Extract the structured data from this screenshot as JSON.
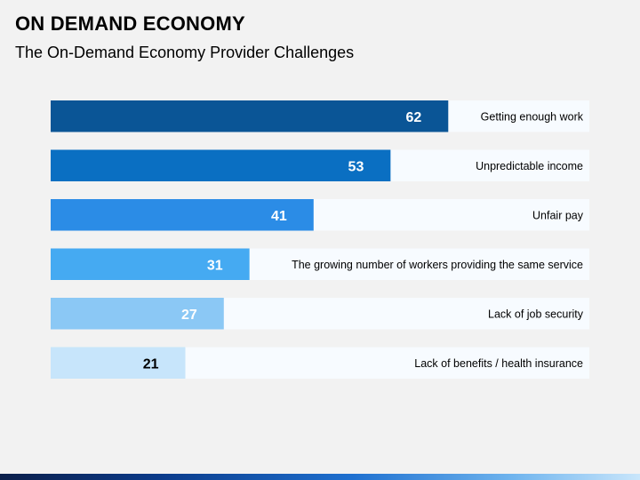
{
  "header": {
    "title": "ON DEMAND ECONOMY",
    "subtitle": "The On-Demand Economy Provider Challenges"
  },
  "chart_data": {
    "type": "bar",
    "orientation": "horizontal",
    "categories": [
      "Getting enough work",
      "Unpredictable income",
      "Unfair pay",
      "The growing number of workers providing the same service",
      "Lack of job security",
      "Lack of benefits / health insurance"
    ],
    "values": [
      62,
      53,
      41,
      31,
      27,
      21
    ],
    "bar_colors": [
      "#0a5596",
      "#0a6fc2",
      "#2b8ce6",
      "#45aaf2",
      "#8bc8f5",
      "#c7e5fb"
    ],
    "value_label_colors": [
      "#ffffff",
      "#ffffff",
      "#ffffff",
      "#ffffff",
      "#ffffff",
      "#000000"
    ],
    "track_color": "#f7fbff",
    "xlim": [
      0,
      84
    ],
    "grid": false
  }
}
